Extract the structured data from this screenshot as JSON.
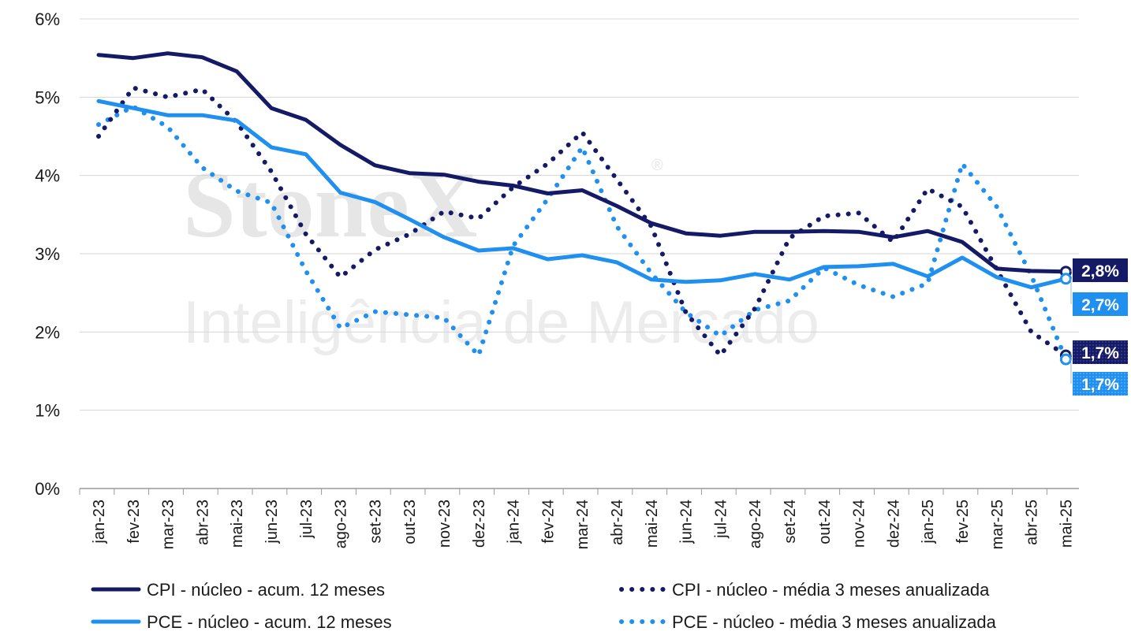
{
  "watermark": {
    "brand": "StoneX",
    "registered": "®",
    "tagline": "Inteligência de Mercado"
  },
  "chart_data": {
    "type": "line",
    "x": [
      "jan-23",
      "fev-23",
      "mar-23",
      "abr-23",
      "mai-23",
      "jun-23",
      "jul-23",
      "ago-23",
      "set-23",
      "out-23",
      "nov-23",
      "dez-23",
      "jan-24",
      "fev-24",
      "mar-24",
      "abr-24",
      "mai-24",
      "jun-24",
      "jul-24",
      "ago-24",
      "set-24",
      "out-24",
      "nov-24",
      "dez-24",
      "jan-25",
      "fev-25",
      "mar-25",
      "abr-25",
      "mai-25"
    ],
    "ylim": [
      0,
      6
    ],
    "yticks": [
      0,
      1,
      2,
      3,
      4,
      5,
      6
    ],
    "ytick_labels": [
      "0%",
      "1%",
      "2%",
      "3%",
      "4%",
      "5%",
      "6%"
    ],
    "grid": "horizontal",
    "legend_position": "bottom",
    "series": [
      {
        "name": "CPI - núcleo - acum. 12 meses",
        "style": "solid",
        "color": "#141a66",
        "values": [
          5.54,
          5.5,
          5.56,
          5.51,
          5.33,
          4.86,
          4.71,
          4.39,
          4.13,
          4.03,
          4.01,
          3.92,
          3.87,
          3.77,
          3.81,
          3.61,
          3.39,
          3.26,
          3.23,
          3.28,
          3.28,
          3.29,
          3.28,
          3.21,
          3.29,
          3.15,
          2.81,
          2.78,
          2.77
        ]
      },
      {
        "name": "CPI - núcleo - média 3 meses anualizada",
        "style": "dotted",
        "color": "#141a66",
        "values": [
          4.5,
          5.12,
          5.0,
          5.1,
          4.68,
          4.05,
          3.25,
          2.7,
          3.05,
          3.25,
          3.54,
          3.45,
          3.85,
          4.15,
          4.55,
          3.95,
          3.35,
          2.25,
          1.7,
          2.3,
          3.2,
          3.48,
          3.52,
          3.15,
          3.83,
          3.6,
          2.8,
          2.0,
          1.7
        ]
      },
      {
        "name": "PCE - núcleo - acum. 12 meses",
        "style": "solid",
        "color": "#1f8ff0",
        "values": [
          4.95,
          4.86,
          4.77,
          4.77,
          4.7,
          4.36,
          4.27,
          3.78,
          3.66,
          3.44,
          3.21,
          3.04,
          3.07,
          2.93,
          2.98,
          2.89,
          2.67,
          2.64,
          2.66,
          2.74,
          2.67,
          2.83,
          2.84,
          2.87,
          2.71,
          2.95,
          2.7,
          2.57,
          2.68
        ]
      },
      {
        "name": "PCE - núcleo - média 3 meses anualizada",
        "style": "dotted",
        "color": "#1f8ff0",
        "values": [
          4.65,
          4.88,
          4.62,
          4.1,
          3.8,
          3.65,
          2.78,
          2.05,
          2.26,
          2.22,
          2.18,
          1.7,
          3.1,
          3.7,
          4.36,
          3.35,
          2.75,
          2.25,
          1.95,
          2.28,
          2.4,
          2.82,
          2.6,
          2.45,
          2.62,
          4.15,
          3.6,
          2.72,
          1.65
        ]
      }
    ],
    "end_labels": [
      {
        "series": 0,
        "text": "2,8%"
      },
      {
        "series": 2,
        "text": "2,7%"
      },
      {
        "series": 1,
        "text": "1,7%"
      },
      {
        "series": 3,
        "text": "1,7%"
      }
    ]
  }
}
